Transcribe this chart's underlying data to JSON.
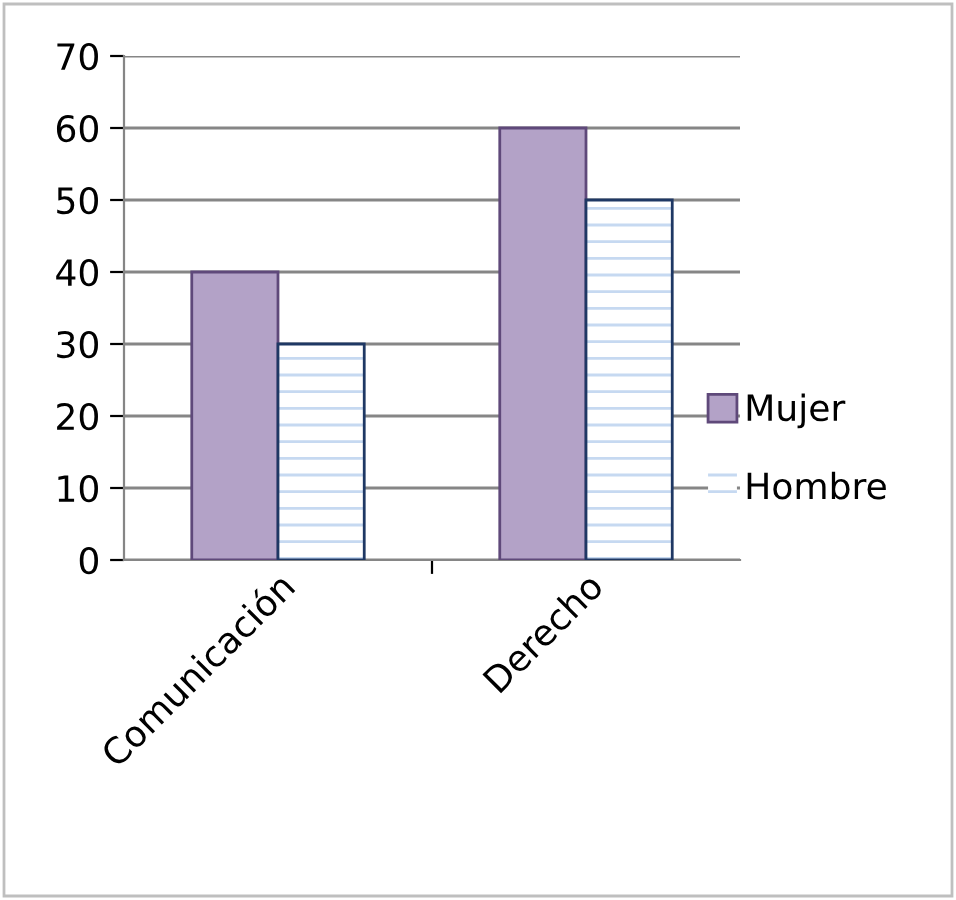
{
  "chart_data": {
    "type": "bar",
    "categories": [
      "Comunicación",
      "Derecho"
    ],
    "series": [
      {
        "name": "Mujer",
        "color": "#b3a2c7",
        "values": [
          40,
          60
        ]
      },
      {
        "name": "Hombre",
        "color": "#c6d9f1",
        "values": [
          30,
          50
        ]
      }
    ],
    "ylim": [
      0,
      70
    ],
    "yticks": [
      0,
      10,
      20,
      30,
      40,
      50,
      60,
      70
    ],
    "grid": "y",
    "legend": "right"
  }
}
